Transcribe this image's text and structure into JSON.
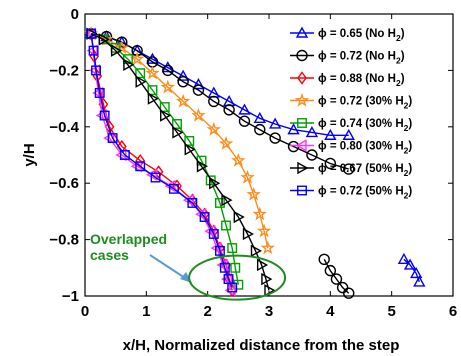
{
  "chart_data": {
    "type": "line",
    "xlabel": "x/H, Normalized distance from the step",
    "ylabel": "y/H",
    "xlim": [
      0,
      6
    ],
    "ylim": [
      -1,
      0
    ],
    "xticks": [
      "0",
      "1",
      "2",
      "3",
      "4",
      "5",
      "6"
    ],
    "yticks": [
      "0",
      "−0.2",
      "−0.4",
      "−0.6",
      "−0.8",
      "−1"
    ],
    "grid": false,
    "legend_position": "upper-right",
    "series": [
      {
        "name_prefix": "ϕ = 0.65 (No H",
        "name_sub": "2",
        "name_suffix": ")",
        "color": "#0000ff",
        "marker": "triangle-up",
        "x": [
          0.1,
          0.35,
          0.6,
          0.85,
          1.1,
          1.35,
          1.6,
          1.85,
          2.1,
          2.35,
          2.6,
          2.85,
          3.1,
          3.4,
          3.7,
          4.0,
          4.3
        ],
        "y": [
          -0.07,
          -0.08,
          -0.1,
          -0.13,
          -0.16,
          -0.19,
          -0.22,
          -0.25,
          -0.28,
          -0.31,
          -0.34,
          -0.37,
          -0.39,
          -0.41,
          -0.42,
          -0.43,
          -0.43
        ],
        "x2": [
          5.2,
          5.3,
          5.4,
          5.45
        ],
        "y2": [
          -0.87,
          -0.89,
          -0.92,
          -0.95
        ]
      },
      {
        "name_prefix": "ϕ = 0.72 (No H",
        "name_sub": "2",
        "name_suffix": ")",
        "color": "#000000",
        "marker": "circle",
        "x": [
          0.1,
          0.35,
          0.6,
          0.85,
          1.1,
          1.35,
          1.6,
          1.85,
          2.1,
          2.35,
          2.6,
          2.85,
          3.1,
          3.4,
          3.7,
          4.0,
          4.3
        ],
        "y": [
          -0.07,
          -0.08,
          -0.1,
          -0.13,
          -0.17,
          -0.2,
          -0.24,
          -0.27,
          -0.31,
          -0.34,
          -0.38,
          -0.41,
          -0.44,
          -0.47,
          -0.5,
          -0.53,
          -0.55
        ],
        "x2": [
          3.9,
          4.0,
          4.1,
          4.2,
          4.3
        ],
        "y2": [
          -0.87,
          -0.91,
          -0.94,
          -0.97,
          -0.99
        ]
      },
      {
        "name_prefix": "ϕ = 0.88 (No H",
        "name_sub": "2",
        "name_suffix": ")",
        "color": "#ff0000",
        "marker": "diamond",
        "x": [
          0.1,
          0.15,
          0.2,
          0.3,
          0.4,
          0.6,
          0.9,
          1.2,
          1.5,
          1.75,
          1.95,
          2.1,
          2.2,
          2.3,
          2.35,
          2.4
        ],
        "y": [
          -0.07,
          -0.15,
          -0.22,
          -0.32,
          -0.4,
          -0.47,
          -0.52,
          -0.56,
          -0.61,
          -0.66,
          -0.71,
          -0.77,
          -0.83,
          -0.89,
          -0.94,
          -0.98
        ]
      },
      {
        "name_prefix": "ϕ = 0.72 (30% H",
        "name_sub": "2",
        "name_suffix": ")",
        "color": "#ff8c1a",
        "marker": "star",
        "x": [
          0.1,
          0.35,
          0.6,
          0.85,
          1.1,
          1.35,
          1.6,
          1.85,
          2.1,
          2.3,
          2.5,
          2.65,
          2.75,
          2.85,
          2.92,
          2.98
        ],
        "y": [
          -0.07,
          -0.09,
          -0.12,
          -0.16,
          -0.21,
          -0.26,
          -0.31,
          -0.36,
          -0.41,
          -0.46,
          -0.52,
          -0.58,
          -0.64,
          -0.71,
          -0.77,
          -0.83
        ]
      },
      {
        "name_prefix": "ϕ = 0.74 (30% H",
        "name_sub": "2",
        "name_suffix": ")",
        "color": "#00a000",
        "marker": "square",
        "x": [
          0.1,
          0.3,
          0.5,
          0.7,
          0.9,
          1.1,
          1.3,
          1.5,
          1.7,
          1.9,
          2.05,
          2.2,
          2.3,
          2.4,
          2.45,
          2.5
        ],
        "y": [
          -0.07,
          -0.09,
          -0.12,
          -0.16,
          -0.21,
          -0.27,
          -0.33,
          -0.39,
          -0.45,
          -0.52,
          -0.59,
          -0.67,
          -0.75,
          -0.83,
          -0.9,
          -0.96
        ]
      },
      {
        "name_prefix": "ϕ = 0.80 (30% H",
        "name_sub": "2",
        "name_suffix": ")",
        "color": "#ff33ff",
        "marker": "triangle-left",
        "x": [
          0.1,
          0.13,
          0.17,
          0.22,
          0.28,
          0.4,
          0.6,
          0.85,
          1.1,
          1.4,
          1.7,
          1.9,
          2.05,
          2.15,
          2.25,
          2.32,
          2.38
        ],
        "y": [
          -0.07,
          -0.13,
          -0.2,
          -0.28,
          -0.36,
          -0.44,
          -0.5,
          -0.54,
          -0.57,
          -0.61,
          -0.66,
          -0.71,
          -0.77,
          -0.83,
          -0.89,
          -0.94,
          -0.98
        ]
      },
      {
        "name_prefix": "ϕ = 0.67 (50% H",
        "name_sub": "2",
        "name_suffix": ")",
        "color": "#000000",
        "marker": "triangle-right",
        "x": [
          0.1,
          0.3,
          0.5,
          0.7,
          0.9,
          1.1,
          1.3,
          1.5,
          1.7,
          1.9,
          2.1,
          2.3,
          2.5,
          2.65,
          2.78,
          2.88,
          2.95,
          3.0
        ],
        "y": [
          -0.07,
          -0.09,
          -0.13,
          -0.18,
          -0.24,
          -0.3,
          -0.36,
          -0.42,
          -0.48,
          -0.54,
          -0.6,
          -0.66,
          -0.72,
          -0.78,
          -0.84,
          -0.89,
          -0.94,
          -0.98
        ]
      },
      {
        "name_prefix": "ϕ = 0.72 (50% H",
        "name_sub": "2",
        "name_suffix": ")",
        "color": "#0000ff",
        "marker": "square",
        "x": [
          0.1,
          0.14,
          0.18,
          0.24,
          0.32,
          0.45,
          0.65,
          0.9,
          1.15,
          1.45,
          1.75,
          1.95,
          2.1,
          2.2,
          2.28,
          2.34,
          2.4
        ],
        "y": [
          -0.07,
          -0.13,
          -0.2,
          -0.28,
          -0.36,
          -0.44,
          -0.5,
          -0.54,
          -0.58,
          -0.62,
          -0.67,
          -0.72,
          -0.78,
          -0.84,
          -0.9,
          -0.94,
          -0.97
        ]
      }
    ],
    "annotations": [
      {
        "text_lines": [
          "Overlapped",
          "cases"
        ],
        "color": "#1e8c1e",
        "arrow_color": "#5b9bd5"
      }
    ]
  }
}
